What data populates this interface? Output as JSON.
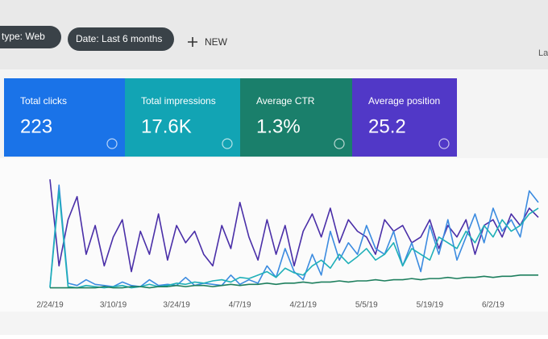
{
  "toolbar": {
    "chips": [
      "type: Web",
      "Date: Last 6 months"
    ],
    "new_button": "NEW",
    "right_text": "La"
  },
  "cards": [
    {
      "label": "Total clicks",
      "value": "223",
      "color": "#1a73e8"
    },
    {
      "label": "Total impressions",
      "value": "17.6K",
      "color": "#12a4b4"
    },
    {
      "label": "Average CTR",
      "value": "1.3%",
      "color": "#1a7f6b"
    },
    {
      "label": "Average position",
      "value": "25.2",
      "color": "#5138c7"
    }
  ],
  "chart_data": {
    "type": "line",
    "ylim": [
      0,
      100
    ],
    "categories": [
      "2/24/19",
      null,
      null,
      null,
      null,
      null,
      null,
      "3/10/19",
      null,
      null,
      null,
      null,
      null,
      null,
      "3/24/19",
      null,
      null,
      null,
      null,
      null,
      null,
      "4/7/19",
      null,
      null,
      null,
      null,
      null,
      null,
      "4/21/19",
      null,
      null,
      null,
      null,
      null,
      null,
      "5/5/19",
      null,
      null,
      null,
      null,
      null,
      null,
      "5/19/19",
      null,
      null,
      null,
      null,
      null,
      null,
      "6/2/19",
      null,
      null,
      null,
      null,
      null
    ],
    "series": [
      {
        "color": "#4a2fa8",
        "values": [
          95,
          20,
          60,
          80,
          30,
          55,
          20,
          45,
          60,
          15,
          50,
          30,
          65,
          25,
          55,
          40,
          50,
          30,
          20,
          55,
          35,
          75,
          45,
          25,
          60,
          30,
          55,
          20,
          50,
          65,
          45,
          70,
          40,
          60,
          50,
          45,
          30,
          60,
          50,
          55,
          40,
          45,
          60,
          35,
          55,
          45,
          60,
          30,
          55,
          60,
          45,
          65,
          55,
          70,
          62
        ]
      },
      {
        "color": "#3b8be0",
        "values": [
          2,
          90,
          5,
          3,
          8,
          4,
          3,
          2,
          6,
          3,
          2,
          8,
          3,
          4,
          3,
          10,
          3,
          5,
          4,
          3,
          12,
          4,
          8,
          5,
          20,
          10,
          35,
          15,
          8,
          30,
          12,
          50,
          25,
          40,
          30,
          55,
          35,
          30,
          50,
          20,
          40,
          15,
          55,
          30,
          60,
          25,
          45,
          65,
          40,
          70,
          50,
          60,
          45,
          85,
          75
        ]
      },
      {
        "color": "#1fb0b8",
        "values": [
          1,
          85,
          2,
          1,
          3,
          2,
          1,
          2,
          3,
          1,
          2,
          4,
          2,
          3,
          5,
          4,
          6,
          5,
          7,
          8,
          6,
          10,
          9,
          12,
          15,
          10,
          18,
          14,
          12,
          20,
          25,
          18,
          30,
          22,
          28,
          35,
          25,
          30,
          40,
          20,
          35,
          30,
          25,
          45,
          40,
          35,
          50,
          40,
          55,
          45,
          60,
          50,
          55,
          65,
          70
        ]
      },
      {
        "color": "#1e7f5e",
        "values": [
          1,
          1,
          1,
          1,
          1,
          1,
          2,
          1,
          1,
          2,
          2,
          1,
          2,
          2,
          3,
          2,
          3,
          3,
          2,
          3,
          4,
          3,
          4,
          4,
          5,
          4,
          5,
          5,
          6,
          5,
          6,
          6,
          7,
          6,
          7,
          7,
          8,
          7,
          8,
          8,
          9,
          8,
          9,
          9,
          10,
          9,
          10,
          10,
          11,
          10,
          11,
          11,
          12,
          12,
          12
        ]
      }
    ]
  }
}
